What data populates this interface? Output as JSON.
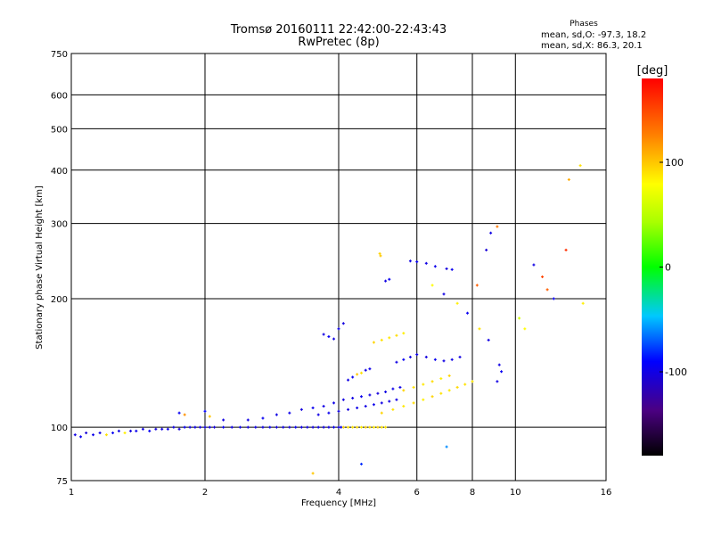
{
  "chart_data": {
    "type": "scatter",
    "title": "Tromsø 20160111 22:42:00-22:43:43",
    "subtitle": "RwPretec (8p)",
    "xlabel": "Frequency [MHz]",
    "ylabel": "Stationary phase Virtual Height [km]",
    "x_scale": "log",
    "y_scale": "log",
    "xlim": [
      1,
      16
    ],
    "ylim": [
      75,
      750
    ],
    "x_ticks": [
      1,
      2,
      4,
      6,
      8,
      10,
      16
    ],
    "x_tick_labels": [
      "1",
      "2",
      "4",
      "6",
      "8",
      "10",
      "16"
    ],
    "y_ticks": [
      75,
      100,
      200,
      300,
      400,
      500,
      600,
      750
    ],
    "y_tick_labels": [
      "75",
      "100",
      "200",
      "300",
      "400",
      "500",
      "600",
      "750"
    ],
    "grid": true,
    "phase_legend": {
      "title": "Phases",
      "o_mode": "mean, sd,O: -97.3, 18.2",
      "x_mode": "mean, sd,X:  86.3, 20.1"
    },
    "colorbar": {
      "unit_label": "[deg]",
      "range": [
        -180,
        180
      ],
      "tick_values": [
        100,
        0,
        -100
      ],
      "tick_labels": [
        "100",
        "0",
        "-100"
      ]
    },
    "series": [
      {
        "values_by": "phase_deg",
        "points": [
          [
            1.02,
            96,
            -100
          ],
          [
            1.05,
            95,
            -95
          ],
          [
            1.08,
            97,
            -105
          ],
          [
            1.12,
            96,
            -98
          ],
          [
            1.16,
            97,
            -100
          ],
          [
            1.2,
            96,
            90
          ],
          [
            1.24,
            97,
            -95
          ],
          [
            1.28,
            98,
            -100
          ],
          [
            1.32,
            97,
            85
          ],
          [
            1.36,
            98,
            -102
          ],
          [
            1.4,
            98,
            -96
          ],
          [
            1.45,
            99,
            -100
          ],
          [
            1.5,
            98,
            -94
          ],
          [
            1.55,
            99,
            -104
          ],
          [
            1.6,
            99,
            -100
          ],
          [
            1.65,
            99,
            -97
          ],
          [
            1.7,
            100,
            -100
          ],
          [
            1.75,
            99,
            -103
          ],
          [
            1.8,
            100,
            -95
          ],
          [
            1.85,
            100,
            -100
          ],
          [
            1.9,
            100,
            -98
          ],
          [
            1.95,
            100,
            -101
          ],
          [
            2.0,
            100,
            -99
          ],
          [
            2.05,
            100,
            -100
          ],
          [
            2.1,
            100,
            -104
          ],
          [
            2.2,
            100,
            -95
          ],
          [
            2.3,
            100,
            -100
          ],
          [
            2.4,
            100,
            -98
          ],
          [
            2.5,
            100,
            -102
          ],
          [
            2.6,
            100,
            -99
          ],
          [
            2.7,
            100,
            -100
          ],
          [
            2.8,
            100,
            -96
          ],
          [
            2.9,
            100,
            -101
          ],
          [
            3.0,
            100,
            -100
          ],
          [
            3.1,
            100,
            -103
          ],
          [
            3.2,
            100,
            -95
          ],
          [
            3.3,
            100,
            -100
          ],
          [
            3.4,
            100,
            -99
          ],
          [
            3.5,
            100,
            -101
          ],
          [
            3.6,
            100,
            -98
          ],
          [
            3.7,
            100,
            -100
          ],
          [
            3.8,
            100,
            -100
          ],
          [
            3.9,
            100,
            -97
          ],
          [
            4.0,
            100,
            -100
          ],
          [
            4.05,
            100,
            -95
          ],
          [
            4.1,
            100,
            95
          ],
          [
            4.2,
            100,
            90
          ],
          [
            4.3,
            100,
            88
          ],
          [
            4.4,
            100,
            92
          ],
          [
            4.5,
            100,
            85
          ],
          [
            4.6,
            100,
            95
          ],
          [
            4.7,
            100,
            90
          ],
          [
            4.8,
            100,
            87
          ],
          [
            4.9,
            100,
            93
          ],
          [
            5.0,
            100,
            90
          ],
          [
            5.1,
            100,
            88
          ],
          [
            1.75,
            108,
            -95
          ],
          [
            1.8,
            107,
            120
          ],
          [
            2.0,
            109,
            -90
          ],
          [
            2.05,
            106,
            100
          ],
          [
            2.2,
            104,
            -100
          ],
          [
            2.5,
            104,
            -100
          ],
          [
            2.7,
            105,
            -95
          ],
          [
            2.9,
            107,
            -100
          ],
          [
            3.1,
            108,
            -98
          ],
          [
            3.3,
            110,
            -102
          ],
          [
            3.5,
            111,
            -96
          ],
          [
            3.7,
            112,
            -100
          ],
          [
            3.9,
            114,
            -99
          ],
          [
            4.1,
            116,
            -101
          ],
          [
            4.3,
            117,
            -100
          ],
          [
            4.5,
            118,
            -97
          ],
          [
            4.7,
            119,
            -100
          ],
          [
            4.9,
            120,
            -103
          ],
          [
            5.1,
            121,
            -100
          ],
          [
            5.3,
            123,
            -98
          ],
          [
            5.5,
            124,
            -100
          ],
          [
            3.6,
            107,
            -100
          ],
          [
            3.8,
            108,
            -96
          ],
          [
            4.0,
            109,
            -100
          ],
          [
            4.2,
            110,
            -102
          ],
          [
            4.4,
            111,
            -99
          ],
          [
            4.6,
            112,
            -100
          ],
          [
            4.8,
            113,
            -97
          ],
          [
            5.0,
            114,
            -100
          ],
          [
            5.2,
            115,
            -101
          ],
          [
            5.4,
            116,
            -100
          ],
          [
            4.2,
            129,
            -100
          ],
          [
            4.3,
            131,
            -95
          ],
          [
            4.4,
            133,
            100
          ],
          [
            4.5,
            134,
            90
          ],
          [
            4.6,
            136,
            -100
          ],
          [
            4.7,
            137,
            -98
          ],
          [
            5.0,
            108,
            95
          ],
          [
            5.3,
            110,
            90
          ],
          [
            5.6,
            112,
            88
          ],
          [
            5.9,
            114,
            92
          ],
          [
            6.2,
            116,
            85
          ],
          [
            6.5,
            118,
            95
          ],
          [
            6.8,
            120,
            90
          ],
          [
            7.1,
            122,
            87
          ],
          [
            7.4,
            124,
            93
          ],
          [
            7.7,
            126,
            90
          ],
          [
            8.0,
            128,
            88
          ],
          [
            5.6,
            122,
            95
          ],
          [
            5.9,
            124,
            90
          ],
          [
            6.2,
            126,
            88
          ],
          [
            6.5,
            128,
            92
          ],
          [
            6.8,
            130,
            85
          ],
          [
            7.1,
            132,
            95
          ],
          [
            5.4,
            142,
            -100
          ],
          [
            5.6,
            144,
            -95
          ],
          [
            5.8,
            146,
            -100
          ],
          [
            6.0,
            148,
            -98
          ],
          [
            6.3,
            146,
            -102
          ],
          [
            6.6,
            144,
            -96
          ],
          [
            6.9,
            143,
            -100
          ],
          [
            7.2,
            144,
            -99
          ],
          [
            7.5,
            146,
            -101
          ],
          [
            4.8,
            158,
            95
          ],
          [
            5.0,
            160,
            90
          ],
          [
            5.2,
            162,
            88
          ],
          [
            5.4,
            164,
            92
          ],
          [
            5.6,
            166,
            85
          ],
          [
            3.7,
            165,
            -100
          ],
          [
            3.8,
            163,
            -95
          ],
          [
            3.9,
            161,
            -100
          ],
          [
            4.0,
            170,
            -98
          ],
          [
            4.1,
            175,
            -102
          ],
          [
            5.8,
            245,
            -100
          ],
          [
            6.0,
            244,
            -95
          ],
          [
            6.3,
            242,
            -100
          ],
          [
            6.6,
            238,
            -98
          ],
          [
            7.0,
            235,
            -102
          ],
          [
            7.2,
            234,
            -96
          ],
          [
            5.1,
            220,
            -100
          ],
          [
            5.2,
            222,
            -95
          ],
          [
            4.95,
            255,
            95
          ],
          [
            4.97,
            252,
            100
          ],
          [
            6.5,
            215,
            80
          ],
          [
            6.9,
            205,
            -100
          ],
          [
            7.4,
            195,
            85
          ],
          [
            7.8,
            185,
            -95
          ],
          [
            8.3,
            170,
            90
          ],
          [
            8.7,
            160,
            -100
          ],
          [
            8.2,
            215,
            140
          ],
          [
            8.8,
            285,
            -100
          ],
          [
            9.1,
            295,
            130
          ],
          [
            8.6,
            260,
            -105
          ],
          [
            9.2,
            140,
            -100
          ],
          [
            9.3,
            135,
            -95
          ],
          [
            9.1,
            128,
            -100
          ],
          [
            11.0,
            240,
            -100
          ],
          [
            11.5,
            225,
            150
          ],
          [
            11.8,
            210,
            140
          ],
          [
            12.2,
            200,
            -95
          ],
          [
            13.0,
            260,
            160
          ],
          [
            10.2,
            180,
            60
          ],
          [
            10.5,
            170,
            80
          ],
          [
            14.0,
            410,
            90
          ],
          [
            13.2,
            380,
            110
          ],
          [
            14.2,
            195,
            85
          ],
          [
            4.5,
            82,
            -80
          ],
          [
            3.5,
            78,
            100
          ],
          [
            7.0,
            90,
            -60
          ]
        ]
      }
    ]
  }
}
